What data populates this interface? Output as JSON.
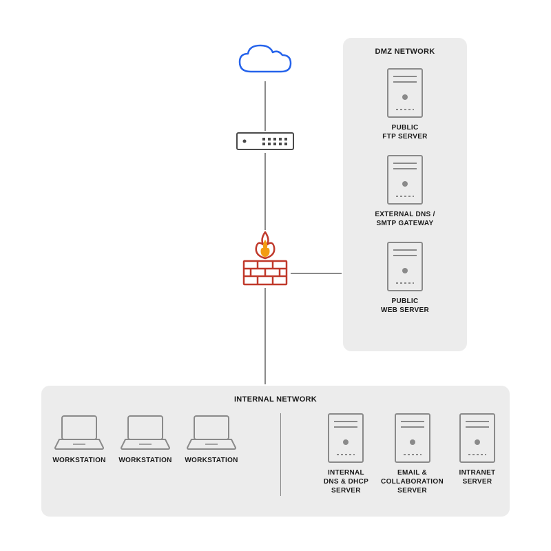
{
  "diagram": {
    "type": "network",
    "background_color": "#ffffff",
    "zone_background": "#ececec",
    "line_color": "#8a8a8a",
    "icon_stroke": "#8a8a8a",
    "text_color": "#1a1a1a",
    "cloud_color": "#2563eb",
    "firewall_brick_color": "#c0392b",
    "firewall_flame_outer": "#c0392b",
    "firewall_flame_inner": "#f39c12",
    "label_fontsize": 10,
    "title_fontsize": 11
  },
  "dmz": {
    "title": "DMZ NETWORK",
    "servers": [
      {
        "label": "PUBLIC\nFTP SERVER"
      },
      {
        "label": "EXTERNAL DNS /\nSMTP GATEWAY"
      },
      {
        "label": "PUBLIC\nWEB SERVER"
      }
    ]
  },
  "internal": {
    "title": "INTERNAL NETWORK",
    "workstations": [
      {
        "label": "WORKSTATION"
      },
      {
        "label": "WORKSTATION"
      },
      {
        "label": "WORKSTATION"
      }
    ],
    "servers": [
      {
        "label": "INTERNAL\nDNS & DHCP\nSERVER"
      },
      {
        "label": "EMAIL &\nCOLLABORATION\nSERVER"
      },
      {
        "label": "INTRANET\nSERVER"
      }
    ]
  }
}
